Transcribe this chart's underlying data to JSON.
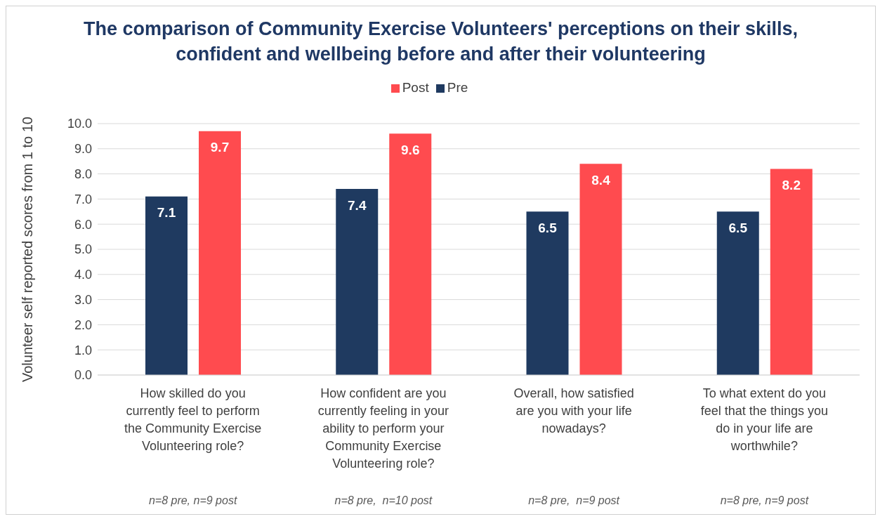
{
  "chart_data": {
    "type": "bar",
    "title": "The comparison of Community Exercise Volunteers' perceptions on their skills, confident and wellbeing before and after their volunteering",
    "ylabel": "Volunteer self reported scores from 1 to 10",
    "categories": [
      "How skilled do you currently feel to perform the Community Exercise Volunteering role?",
      "How confident are you currently feeling in your ability to perform your Community Exercise Volunteering role?",
      "Overall, how satisfied are you with your life nowadays?",
      "To what extent do you feel that the things you do in your life are worthwhile?"
    ],
    "series": [
      {
        "name": "Pre",
        "color": "#1f3a60",
        "values": [
          7.1,
          7.4,
          6.5,
          6.5
        ]
      },
      {
        "name": "Post",
        "color": "#ff4b4f",
        "values": [
          9.7,
          9.6,
          8.4,
          8.2
        ]
      }
    ],
    "ylim": [
      0,
      10
    ],
    "yticks": [
      {
        "value": 0,
        "label": "0.0"
      },
      {
        "value": 1,
        "label": "1.0"
      },
      {
        "value": 2,
        "label": "2.0"
      },
      {
        "value": 3,
        "label": "3.0"
      },
      {
        "value": 4,
        "label": "4.0"
      },
      {
        "value": 5,
        "label": "5.0"
      },
      {
        "value": 6,
        "label": "6.0"
      },
      {
        "value": 7,
        "label": "7.0"
      },
      {
        "value": 8,
        "label": "8.0"
      },
      {
        "value": 9,
        "label": "9.0"
      },
      {
        "value": 10,
        "label": "10.0"
      }
    ],
    "grid": "y",
    "legend": "top",
    "data_labels": true,
    "annotations": [
      "n=8 pre, n=9 post",
      "n=8 pre,  n=10 post",
      "n=8 pre,  n=9 post",
      "n=8 pre, n=9 post"
    ]
  }
}
